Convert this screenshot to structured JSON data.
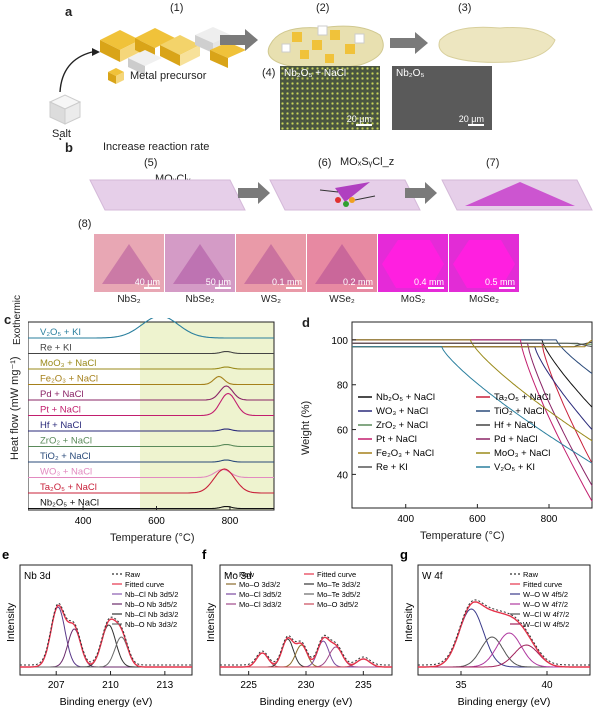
{
  "panel_a": {
    "label": "a",
    "steps": [
      "(1)",
      "(2)",
      "(3)"
    ],
    "step4": "(4)",
    "metal_precursor": "Metal precursor",
    "salt": "Salt",
    "sem_left": {
      "label": "Nb₂O₅ + NaCl",
      "scale": "20 μm"
    },
    "sem_right": {
      "label": "Nb₂O₅",
      "scale": "20 μm"
    }
  },
  "panel_b": {
    "label": "b",
    "increase": "Increase reaction rate",
    "steps": [
      "(5)",
      "(6)",
      "(7)"
    ],
    "step8": "(8)",
    "moxcly": "MOₓClᵧ",
    "moxsycl": "MOₓSᵧCl_z",
    "images": [
      {
        "name": "NbS₂",
        "scale": "40 μm",
        "color": "#e8a7b4"
      },
      {
        "name": "NbSe₂",
        "scale": "50 μm",
        "color": "#d49bc6"
      },
      {
        "name": "WS₂",
        "scale": "0.1 mm",
        "color": "#e99aa8"
      },
      {
        "name": "WSe₂",
        "scale": "0.2 mm",
        "color": "#e789a2"
      },
      {
        "name": "MoS₂",
        "scale": "0.4 mm",
        "color": "#e52ad8"
      },
      {
        "name": "MoSe₂",
        "scale": "0.5 mm",
        "color": "#e22cd6"
      }
    ]
  },
  "panel_c": {
    "label": "c",
    "exothermic": "Exothermic",
    "ylabel": "Heat flow (mW mg⁻¹)",
    "xlabel": "Temperature (°C)",
    "xticks": [
      "400",
      "600",
      "800"
    ],
    "series": [
      {
        "name": "V₂O₅ + KI",
        "color": "#2a7f9e"
      },
      {
        "name": "Re + KI",
        "color": "#444444"
      },
      {
        "name": "MoO₃ + NaCl",
        "color": "#9a8a1a"
      },
      {
        "name": "Fe₂O₃ + NaCl",
        "color": "#a5801a"
      },
      {
        "name": "Pd + NaCl",
        "color": "#8a2466"
      },
      {
        "name": "Pt + NaCl",
        "color": "#c21e6e"
      },
      {
        "name": "Hf + NaCl",
        "color": "#2a2a7a"
      },
      {
        "name": "ZrO₂ + NaCl",
        "color": "#5a8a5a"
      },
      {
        "name": "TiO₂ + NaCl",
        "color": "#2a4a7a"
      },
      {
        "name": "WO₃ + NaCl",
        "color": "#e28ac0"
      },
      {
        "name": "Ta₂O₅ + NaCl",
        "color": "#c8203a"
      },
      {
        "name": "Nb₂O₅ + NaCl",
        "color": "#111111"
      }
    ]
  },
  "panel_d": {
    "label": "d",
    "ylabel": "Weight (%)",
    "xlabel": "Temperature (°C)",
    "yticks": [
      "40",
      "60",
      "80",
      "100"
    ],
    "xticks": [
      "400",
      "600",
      "800"
    ],
    "legend": [
      [
        "Nb₂O₅ + NaCl",
        "Ta₂O₅ + NaCl"
      ],
      [
        "WO₃ + NaCl",
        "TiO₂ + NaCl"
      ],
      [
        "ZrO₂ + NaCl",
        "Hf + NaCl"
      ],
      [
        "Pt + NaCl",
        "Pd + NaCl"
      ],
      [
        "Fe₂O₃ + NaCl",
        "MoO₃ + NaCl"
      ],
      [
        "Re + KI",
        "V₂O₅ + KI"
      ]
    ]
  },
  "panel_e": {
    "label": "e",
    "title": "Nb 3d",
    "legend": [
      "Raw",
      "Fitted curve",
      "Nb–Cl Nb 3d5/2",
      "Nb–O Nb 3d5/2",
      "Nb–Cl Nb 3d3/2",
      "Nb–O Nb 3d3/2"
    ],
    "xticks": [
      "207",
      "210",
      "213"
    ],
    "xlabel": "Binding energy (eV)",
    "ylabel": "Intensity"
  },
  "panel_f": {
    "label": "f",
    "title": "Mo 3d",
    "legend": [
      "Raw",
      "Mo–O 3d3/2",
      "Mo–Cl 3d5/2",
      "Mo–Cl 3d3/2",
      "Fitted curve",
      "Mo–Te 3d3/2",
      "Mo–Te 3d5/2",
      "Mo–O 3d5/2"
    ],
    "xticks": [
      "225",
      "230",
      "235"
    ],
    "xlabel": "Binding energy (eV)",
    "ylabel": "Intensity"
  },
  "panel_g": {
    "label": "g",
    "title": "W 4f",
    "legend": [
      "Raw",
      "Fitted curve",
      "W–O W 4f5/2",
      "W–O W 4f7/2",
      "W–Cl W 4f7/2",
      "W–Cl W 4f5/2"
    ],
    "xticks": [
      "35",
      "40"
    ],
    "xlabel": "Binding energy (eV)",
    "ylabel": "Intensity"
  }
}
